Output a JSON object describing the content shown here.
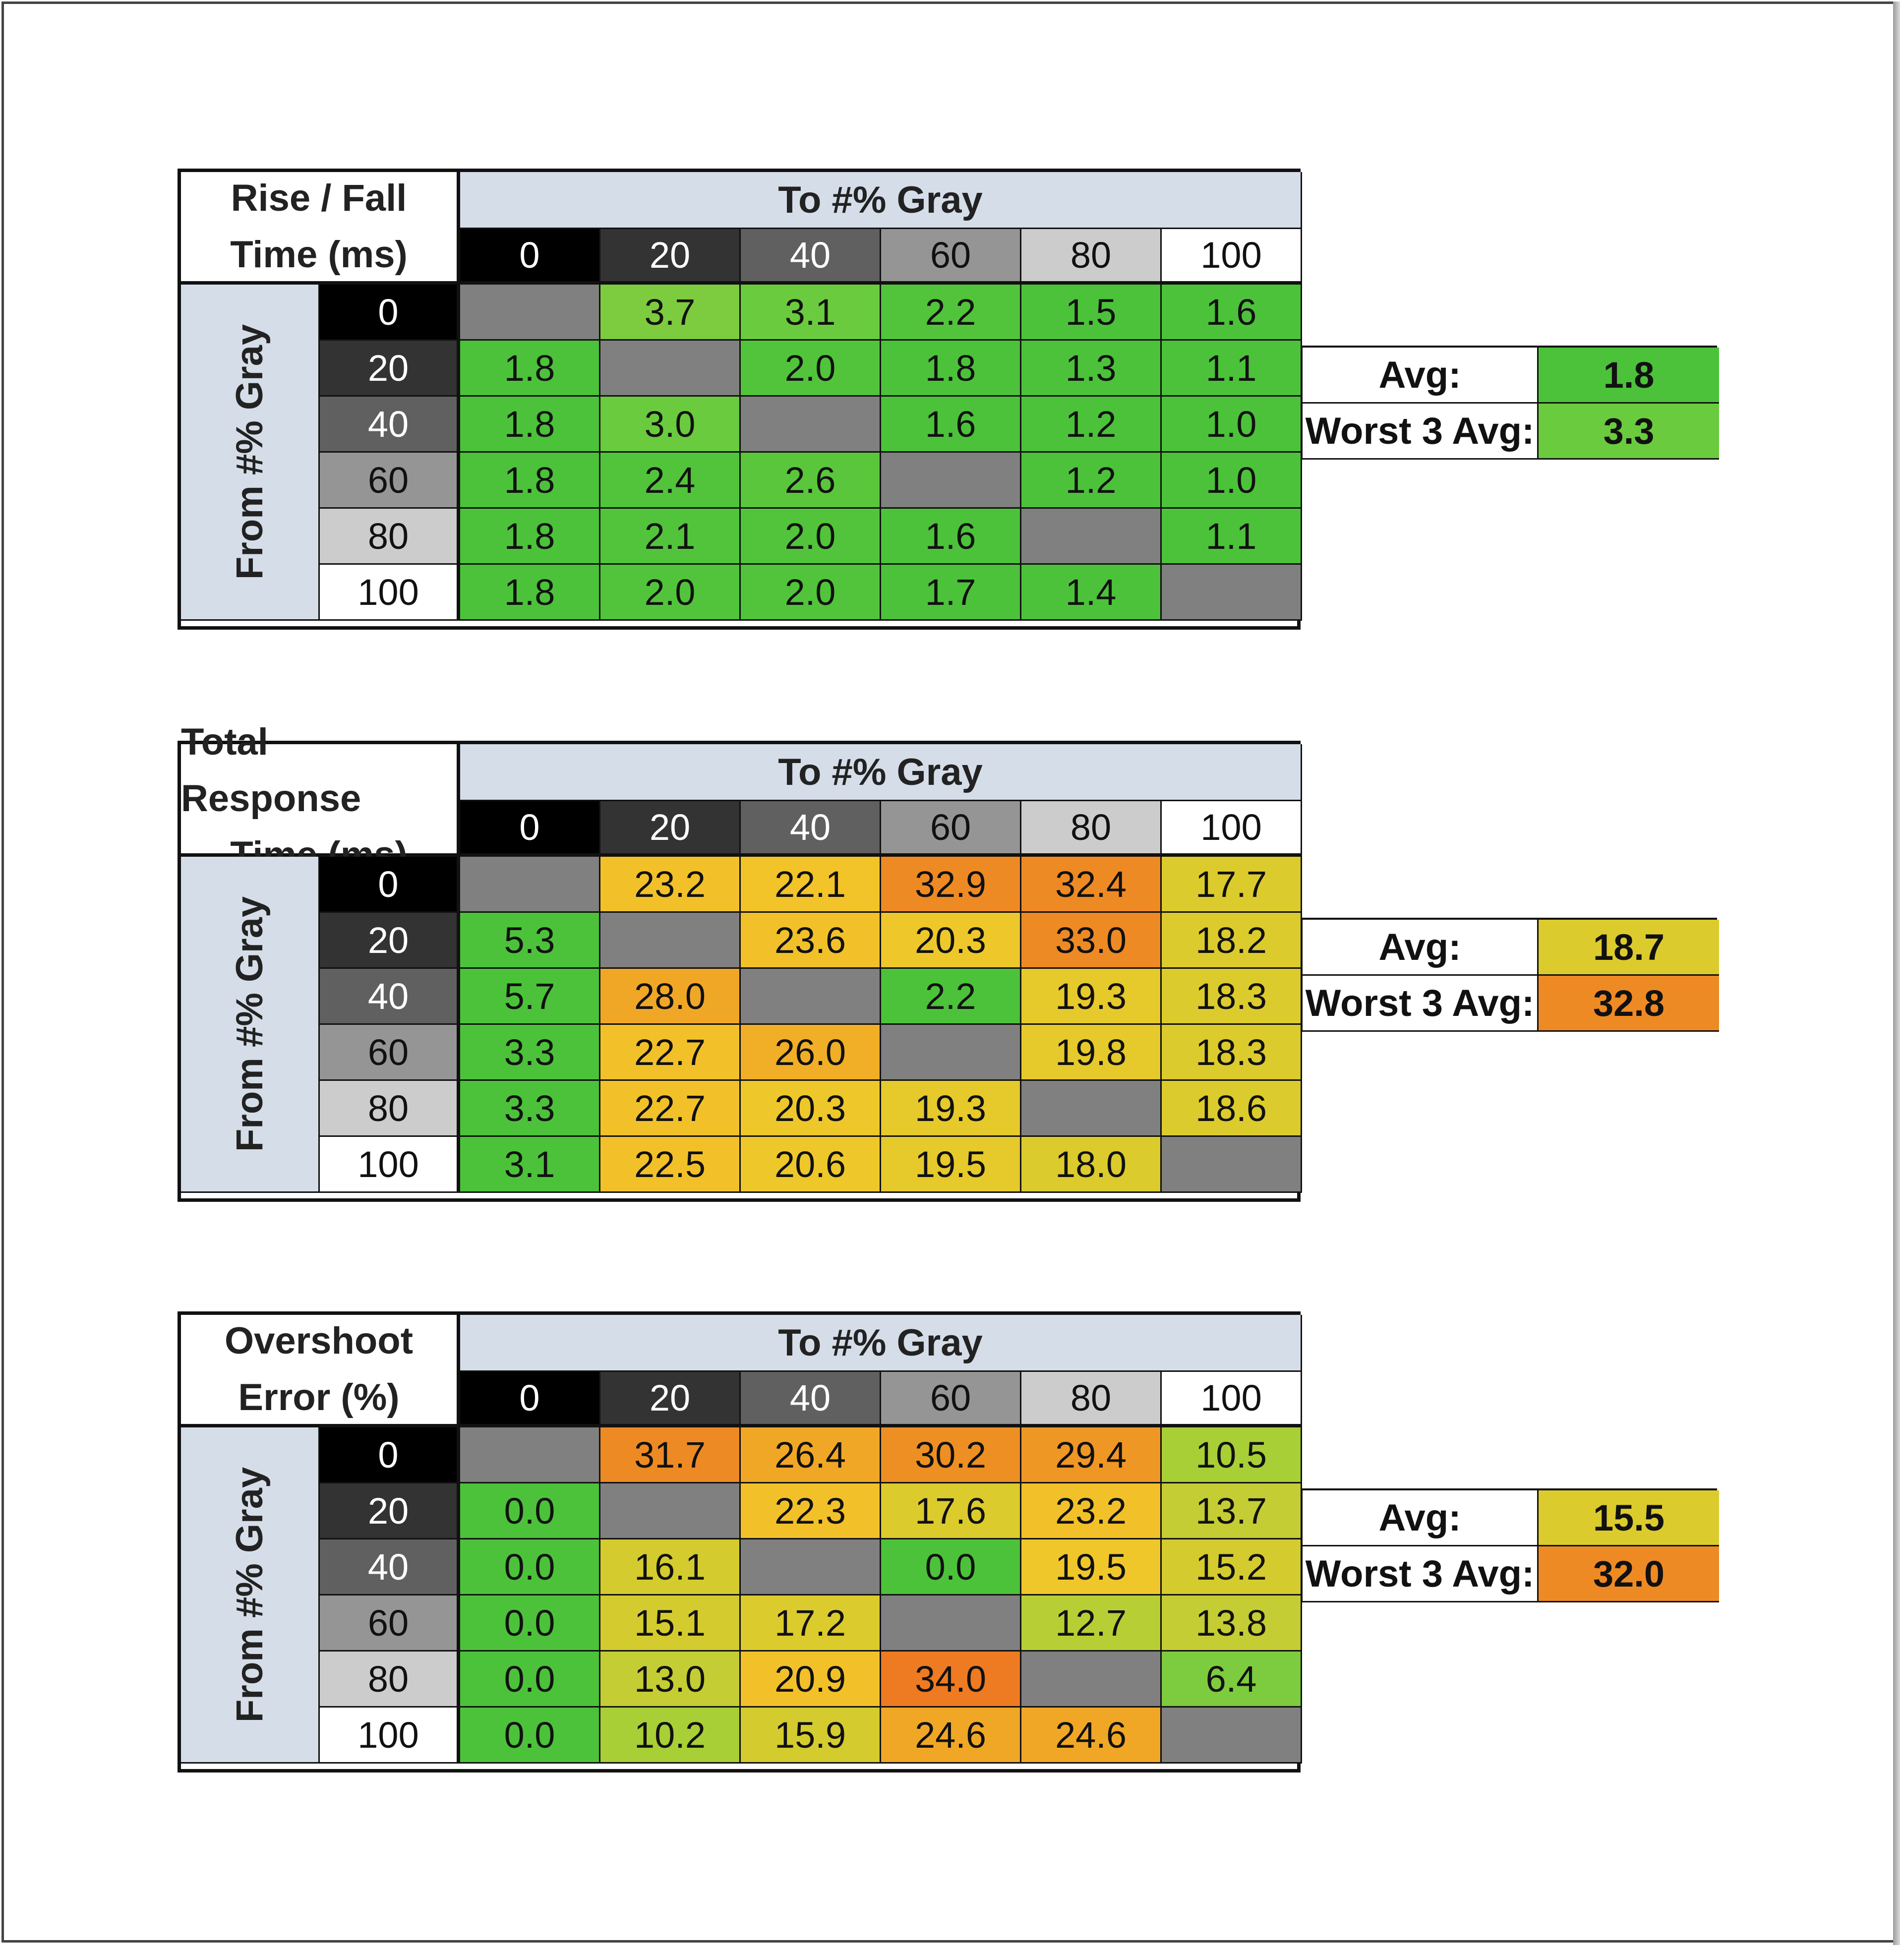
{
  "chart_data": [
    {
      "type": "table",
      "title_lines": [
        "Rise / Fall",
        "Time (ms)"
      ],
      "column_header": "To #% Gray",
      "row_header": "From #% Gray",
      "levels": [
        "0",
        "20",
        "40",
        "60",
        "80",
        "100"
      ],
      "rows": [
        [
          null,
          3.7,
          3.1,
          2.2,
          1.5,
          1.6
        ],
        [
          1.8,
          null,
          2.0,
          1.8,
          1.3,
          1.1
        ],
        [
          1.8,
          3.0,
          null,
          1.6,
          1.2,
          1.0
        ],
        [
          1.8,
          2.4,
          2.6,
          null,
          1.2,
          1.0
        ],
        [
          1.8,
          2.1,
          2.0,
          1.6,
          null,
          1.1
        ],
        [
          1.8,
          2.0,
          2.0,
          1.7,
          1.4,
          null
        ]
      ],
      "cell_colors": [
        [
          "#808080",
          "#7dcb3e",
          "#6acb3e",
          "#52c43b",
          "#4cc23a",
          "#4cc23a"
        ],
        [
          "#4cc23a",
          "#808080",
          "#52c43b",
          "#4cc23a",
          "#4cc23a",
          "#4cc23a"
        ],
        [
          "#4cc23a",
          "#6acb3e",
          "#808080",
          "#4cc23a",
          "#4cc23a",
          "#4cc23a"
        ],
        [
          "#4cc23a",
          "#52c43b",
          "#5ac63c",
          "#808080",
          "#4cc23a",
          "#4cc23a"
        ],
        [
          "#4cc23a",
          "#52c43b",
          "#52c43b",
          "#4cc23a",
          "#808080",
          "#4cc23a"
        ],
        [
          "#4cc23a",
          "#52c43b",
          "#52c43b",
          "#4cc23a",
          "#4cc23a",
          "#808080"
        ]
      ],
      "avg_label": "Avg:",
      "avg_value": "1.8",
      "avg_color": "#4cc23a",
      "worst_label": "Worst 3 Avg:",
      "worst_value": "3.3",
      "worst_color": "#6acb3e"
    },
    {
      "type": "table",
      "title_lines": [
        "Total Response",
        "Time (ms)"
      ],
      "column_header": "To #% Gray",
      "row_header": "From #% Gray",
      "levels": [
        "0",
        "20",
        "40",
        "60",
        "80",
        "100"
      ],
      "rows": [
        [
          null,
          23.2,
          22.1,
          32.9,
          32.4,
          17.7
        ],
        [
          5.3,
          null,
          23.6,
          20.3,
          33.0,
          18.2
        ],
        [
          5.7,
          28.0,
          null,
          2.2,
          19.3,
          18.3
        ],
        [
          3.3,
          22.7,
          26.0,
          null,
          19.8,
          18.3
        ],
        [
          3.3,
          22.7,
          20.3,
          19.3,
          null,
          18.6
        ],
        [
          3.1,
          22.5,
          20.6,
          19.5,
          18.0,
          null
        ]
      ],
      "cell_colors": [
        [
          "#808080",
          "#f2c12a",
          "#f2c42a",
          "#ee8a24",
          "#ee8a24",
          "#dccb2c"
        ],
        [
          "#4cc23a",
          "#808080",
          "#f2c12a",
          "#eec82b",
          "#ee8a24",
          "#dccb2c"
        ],
        [
          "#4cc23a",
          "#f1a726",
          "#808080",
          "#4cc23a",
          "#e6c92b",
          "#dccb2c"
        ],
        [
          "#4cc23a",
          "#f2c12a",
          "#f1ae27",
          "#808080",
          "#e6c92b",
          "#dccb2c"
        ],
        [
          "#4cc23a",
          "#f2c12a",
          "#eec82b",
          "#e6c92b",
          "#808080",
          "#dccb2c"
        ],
        [
          "#4cc23a",
          "#f2c12a",
          "#eec82b",
          "#e6c92b",
          "#dccb2c",
          "#808080"
        ]
      ],
      "avg_label": "Avg:",
      "avg_value": "18.7",
      "avg_color": "#dccb2c",
      "worst_label": "Worst 3 Avg:",
      "worst_value": "32.8",
      "worst_color": "#ee8a24"
    },
    {
      "type": "table",
      "title_lines": [
        "Overshoot",
        "Error (%)"
      ],
      "column_header": "To #% Gray",
      "row_header": "From #% Gray",
      "levels": [
        "0",
        "20",
        "40",
        "60",
        "80",
        "100"
      ],
      "rows": [
        [
          null,
          31.7,
          26.4,
          30.2,
          29.4,
          10.5
        ],
        [
          0.0,
          null,
          22.3,
          17.6,
          23.2,
          13.7
        ],
        [
          0.0,
          16.1,
          null,
          0.0,
          19.5,
          15.2
        ],
        [
          0.0,
          15.1,
          17.2,
          null,
          12.7,
          13.8
        ],
        [
          0.0,
          13.0,
          20.9,
          34.0,
          null,
          6.4
        ],
        [
          0.0,
          10.2,
          15.9,
          24.6,
          24.6,
          null
        ]
      ],
      "cell_colors": [
        [
          "#808080",
          "#ee8a24",
          "#f1a726",
          "#ee8f24",
          "#ef9725",
          "#a8cf36"
        ],
        [
          "#4cc23a",
          "#808080",
          "#f2c12a",
          "#dccb2c",
          "#f2c12a",
          "#c4cd33"
        ],
        [
          "#4cc23a",
          "#d4cb2f",
          "#808080",
          "#4cc23a",
          "#f0c72b",
          "#d4cb2f"
        ],
        [
          "#4cc23a",
          "#d4cb2f",
          "#dccb2c",
          "#808080",
          "#b8ce35",
          "#c4cd33"
        ],
        [
          "#4cc23a",
          "#c4cd33",
          "#f2c12a",
          "#ee7a22",
          "#808080",
          "#7dcb3e"
        ],
        [
          "#4cc23a",
          "#a8cf36",
          "#d4cb2f",
          "#f1a726",
          "#f1a726",
          "#808080"
        ]
      ],
      "avg_label": "Avg:",
      "avg_value": "15.5",
      "avg_color": "#dccb2c",
      "worst_label": "Worst 3 Avg:",
      "worst_value": "32.0",
      "worst_color": "#ee8a24"
    }
  ],
  "level_colors": {
    "0": {
      "bg": "#000000",
      "fg": "#ffffff"
    },
    "20": {
      "bg": "#333333",
      "fg": "#ffffff"
    },
    "40": {
      "bg": "#606060",
      "fg": "#ffffff"
    },
    "60": {
      "bg": "#959595",
      "fg": "#111111"
    },
    "80": {
      "bg": "#cccccc",
      "fg": "#111111"
    },
    "100": {
      "bg": "#ffffff",
      "fg": "#111111"
    }
  }
}
